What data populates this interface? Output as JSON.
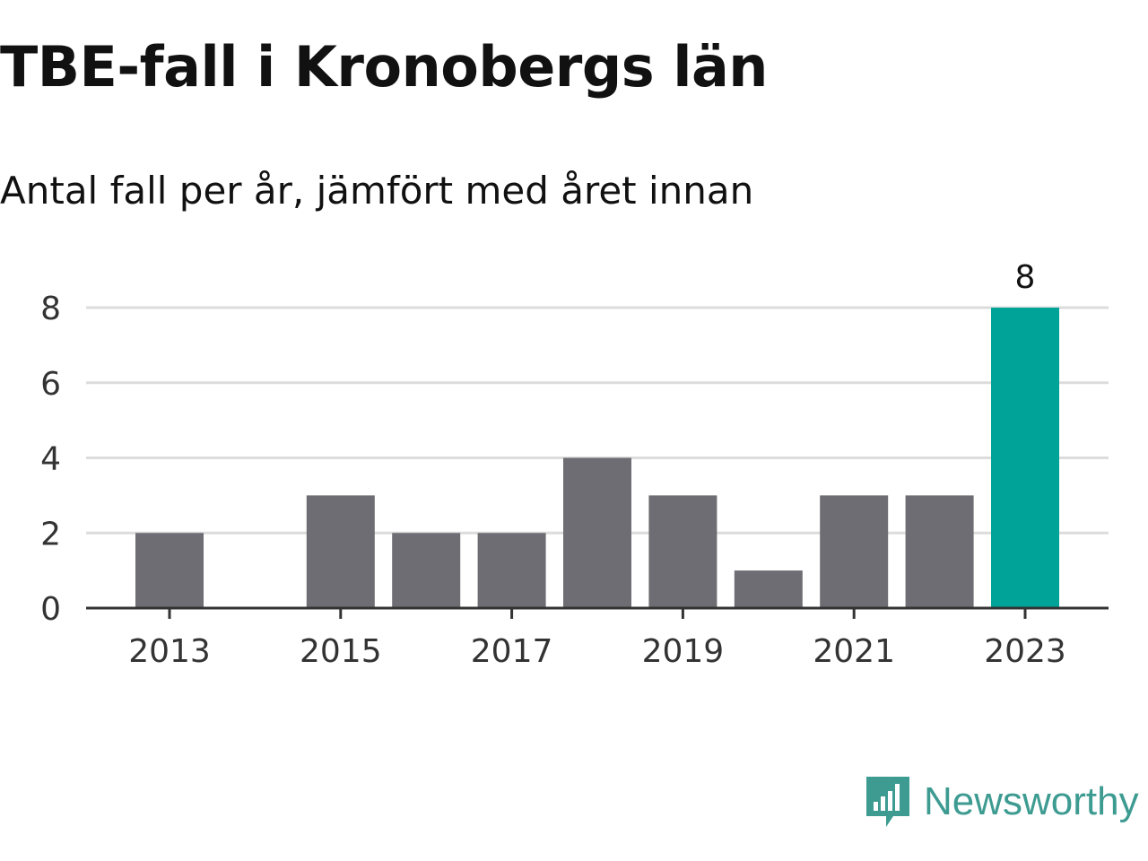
{
  "title": "TBE-fall i Kronobergs län",
  "subtitle": "Antal fall per år, jämfört med året innan",
  "chart_data": {
    "type": "bar",
    "title": "TBE-fall i Kronobergs län",
    "subtitle": "Antal fall per år, jämfört med året innan",
    "categories": [
      "2013",
      "2014",
      "2015",
      "2016",
      "2017",
      "2018",
      "2019",
      "2020",
      "2021",
      "2022",
      "2023"
    ],
    "values": [
      2,
      0,
      3,
      2,
      2,
      4,
      3,
      1,
      3,
      3,
      8
    ],
    "x_tick_labels": [
      "2013",
      "2015",
      "2017",
      "2019",
      "2021",
      "2023"
    ],
    "y_ticks": [
      "0",
      "2",
      "4",
      "6",
      "8"
    ],
    "ylim": [
      0,
      8
    ],
    "xlabel": "",
    "ylabel": "",
    "grid": true,
    "legend": "none",
    "highlight": {
      "category": "2023",
      "label": "8"
    },
    "colors": {
      "bar": "#6e6d73",
      "highlight": "#00a398",
      "grid": "#dcdcdc",
      "axis": "#333333"
    }
  },
  "brand": {
    "name": "Newsworthy",
    "icon": "newsworthy-logo-icon",
    "color": "#3d9b91"
  }
}
